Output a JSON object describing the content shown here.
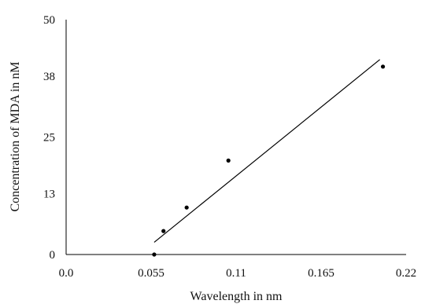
{
  "chart_data": {
    "type": "scatter",
    "title": "",
    "xlabel": "Wavelength in nm",
    "ylabel": "Concentration of MDA in nM",
    "xlim": [
      0.0,
      0.22
    ],
    "ylim": [
      0,
      50
    ],
    "x_ticks": [
      "0.0",
      "0.055",
      "0.11",
      "0.165",
      "0.22"
    ],
    "y_ticks": [
      "0",
      "13",
      "25",
      "38",
      "50"
    ],
    "grid": false,
    "legend": "none",
    "colors": {
      "points": "#000000",
      "trendline": "#000000",
      "axes": "#000000"
    },
    "series": [
      {
        "points": [
          {
            "x": 0.057,
            "y": 0
          },
          {
            "x": 0.063,
            "y": 5
          },
          {
            "x": 0.078,
            "y": 10
          },
          {
            "x": 0.105,
            "y": 20
          },
          {
            "x": 0.205,
            "y": 40
          }
        ]
      }
    ],
    "trendline": {
      "x": [
        0.057,
        0.203
      ],
      "y": [
        2.6,
        41.5
      ]
    }
  }
}
